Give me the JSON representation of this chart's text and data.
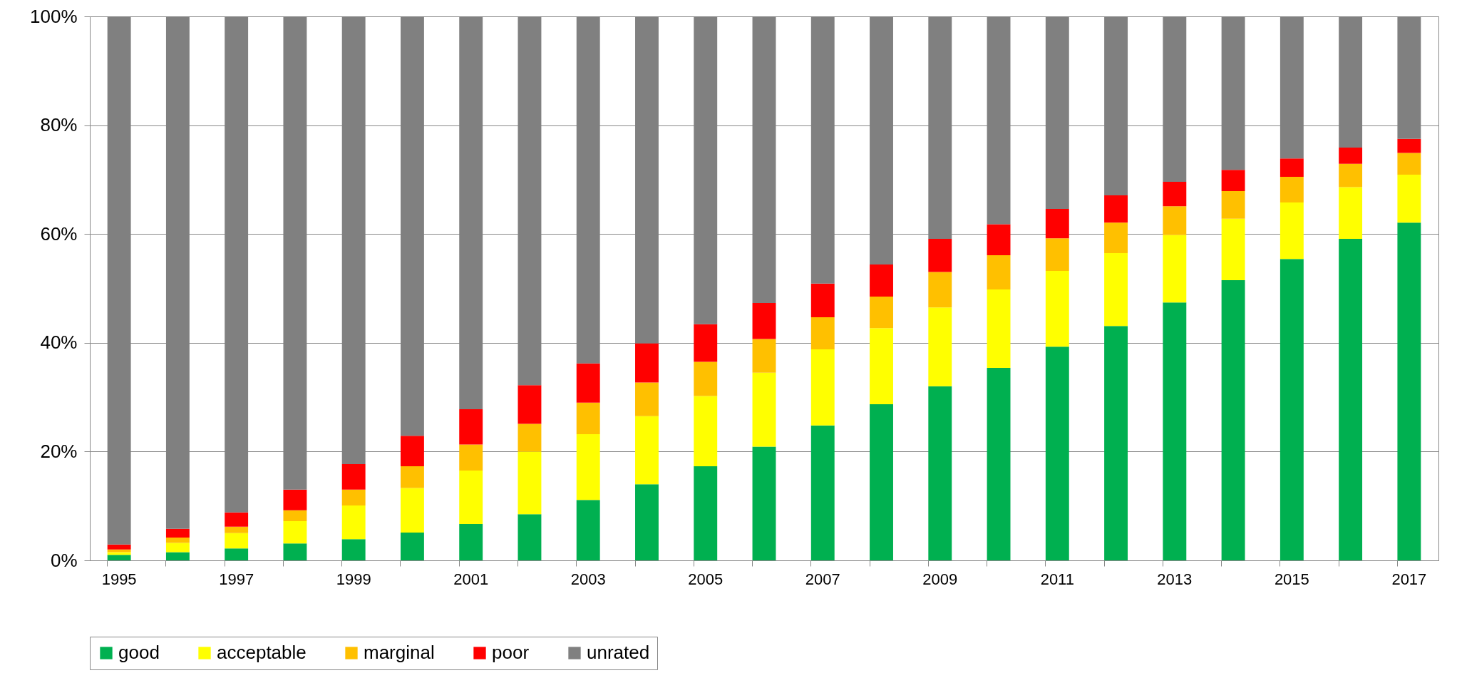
{
  "chart_data": {
    "type": "bar",
    "stacked": true,
    "categories": [
      "1995",
      null,
      "1997",
      null,
      "1999",
      null,
      "2001",
      null,
      "2003",
      null,
      "2005",
      null,
      "2007",
      null,
      "2009",
      null,
      "2011",
      null,
      "2013",
      null,
      "2015",
      null,
      "2017"
    ],
    "series": [
      {
        "name": "good",
        "color": "#00b050",
        "values": [
          1.0,
          1.5,
          2.2,
          3.1,
          3.9,
          5.1,
          6.7,
          8.5,
          11.1,
          14.0,
          17.3,
          20.9,
          24.8,
          28.7,
          32.0,
          35.4,
          39.3,
          43.1,
          47.4,
          51.5,
          55.4,
          59.1,
          62.1
        ]
      },
      {
        "name": "acceptable",
        "color": "#ffff00",
        "values": [
          0.5,
          1.7,
          2.8,
          4.1,
          6.2,
          8.2,
          9.8,
          11.5,
          12.1,
          12.5,
          12.9,
          13.6,
          14.0,
          14.0,
          14.5,
          14.4,
          13.9,
          13.4,
          12.4,
          11.3,
          10.4,
          9.5,
          8.8
        ]
      },
      {
        "name": "marginal",
        "color": "#ffc000",
        "values": [
          0.5,
          1.0,
          1.2,
          2.0,
          2.9,
          4.0,
          4.8,
          5.1,
          5.8,
          6.2,
          6.3,
          6.2,
          5.9,
          5.8,
          6.5,
          6.3,
          6.0,
          5.6,
          5.3,
          5.1,
          4.7,
          4.3,
          4.0
        ]
      },
      {
        "name": "poor",
        "color": "#ff0000",
        "values": [
          0.9,
          1.6,
          2.6,
          3.8,
          4.7,
          5.6,
          6.5,
          7.1,
          7.2,
          7.2,
          6.9,
          6.6,
          6.2,
          5.9,
          6.1,
          5.7,
          5.4,
          5.0,
          4.5,
          3.9,
          3.4,
          3.0,
          2.6
        ]
      },
      {
        "name": "unrated",
        "color": "#808080",
        "values": [
          97.1,
          94.2,
          91.2,
          87.0,
          82.3,
          77.1,
          72.2,
          67.8,
          63.8,
          60.1,
          56.6,
          52.7,
          49.1,
          45.6,
          40.9,
          38.2,
          35.4,
          32.9,
          30.4,
          28.2,
          26.1,
          24.1,
          22.5
        ]
      }
    ],
    "ylim": [
      0,
      100
    ],
    "yticks": [
      {
        "value": 0,
        "label": "0%"
      },
      {
        "value": 20,
        "label": "20%"
      },
      {
        "value": 40,
        "label": "40%"
      },
      {
        "value": 60,
        "label": "60%"
      },
      {
        "value": 80,
        "label": "80%"
      },
      {
        "value": 100,
        "label": "100%"
      }
    ],
    "grid": "y",
    "legend": "bottom"
  }
}
